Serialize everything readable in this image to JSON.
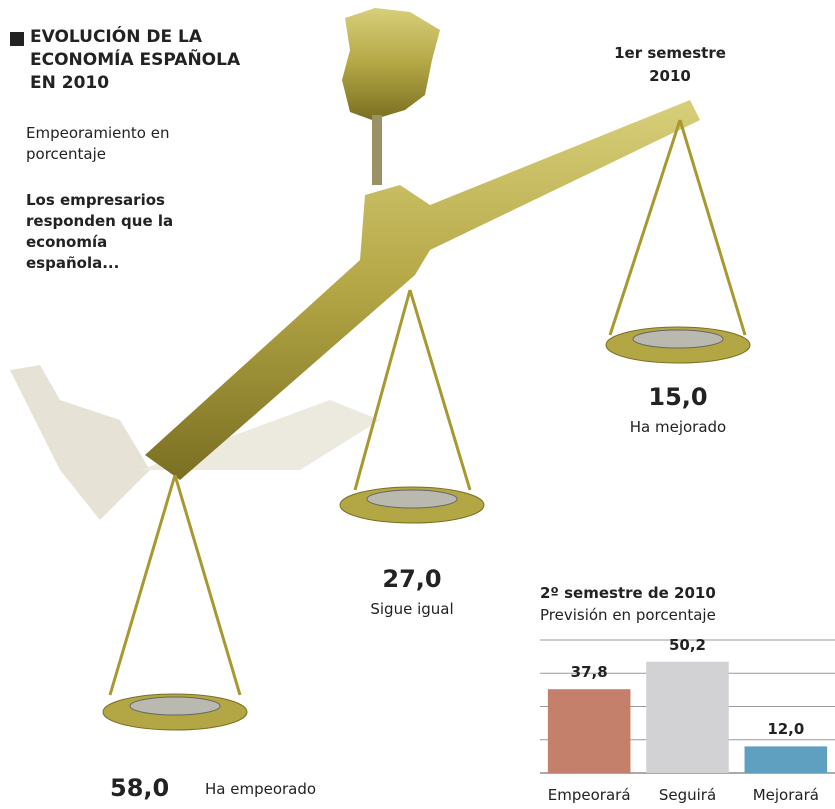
{
  "header": {
    "title": "EVOLUCIÓN DE LA ECONOMÍA ESPAÑOLA EN 2010",
    "subtitle": "Empeoramiento en porcentaje",
    "note": "Los empresarios responden que la economía española..."
  },
  "chart_data": [
    {
      "type": "scale",
      "title": "1er semestre 2010",
      "categories": [
        "Ha empeorado",
        "Sigue igual",
        "Ha mejorado"
      ],
      "values": [
        58.0,
        27.0,
        15.0
      ],
      "value_labels": [
        "58,0",
        "27,0",
        "15,0"
      ],
      "color": "#b3a645"
    },
    {
      "type": "bar",
      "title": "2º semestre de 2010",
      "subtitle": "Previsión en porcentaje",
      "categories": [
        "Empeorará",
        "Seguirá",
        "Mejorará"
      ],
      "values": [
        37.8,
        50.2,
        12.0
      ],
      "value_labels": [
        "37,8",
        "50,2",
        "12,0"
      ],
      "colors": [
        "#c4806a",
        "#d2d2d4",
        "#5f9fbf"
      ],
      "ylim": [
        0,
        60
      ],
      "grid": true
    }
  ]
}
